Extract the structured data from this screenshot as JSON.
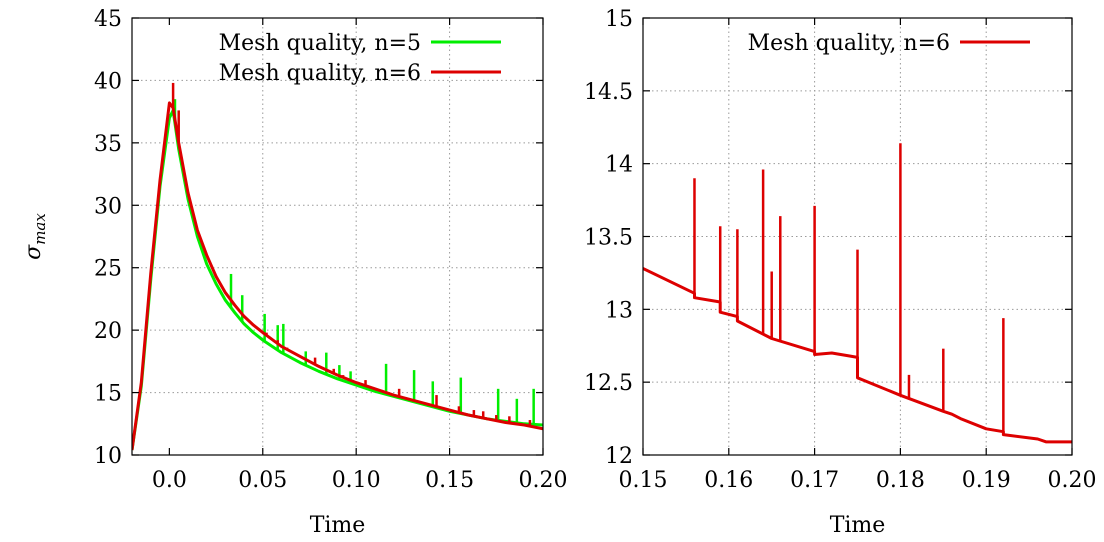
{
  "chart_data": [
    {
      "type": "line",
      "title": "",
      "xlabel": "Time",
      "ylabel": "σ",
      "ylabel_sub": "max",
      "xlim": [
        -0.02,
        0.2
      ],
      "ylim": [
        10,
        45
      ],
      "xticks": [
        0.0,
        0.05,
        0.1,
        0.15,
        0.2
      ],
      "xtick_labels": [
        "0.0",
        "0.05",
        "0.10",
        "0.15",
        "0.20"
      ],
      "yticks": [
        10,
        15,
        20,
        25,
        30,
        35,
        40,
        45
      ],
      "ytick_labels": [
        "10",
        "15",
        "20",
        "25",
        "30",
        "35",
        "40",
        "45"
      ],
      "grid": true,
      "legend_position": "top-right",
      "series": [
        {
          "name": "Mesh quality, n=5",
          "color": "#00ee00",
          "x": [
            -0.02,
            -0.015,
            -0.01,
            -0.005,
            0.0,
            0.002,
            0.005,
            0.01,
            0.015,
            0.02,
            0.025,
            0.03,
            0.035,
            0.04,
            0.045,
            0.05,
            0.06,
            0.07,
            0.08,
            0.09,
            0.1,
            0.11,
            0.12,
            0.13,
            0.14,
            0.15,
            0.16,
            0.17,
            0.18,
            0.19,
            0.2
          ],
          "y": [
            10.4,
            15.5,
            24.0,
            31.5,
            37.0,
            37.6,
            34.5,
            30.5,
            27.5,
            25.3,
            23.7,
            22.4,
            21.4,
            20.5,
            19.8,
            19.2,
            18.2,
            17.4,
            16.7,
            16.1,
            15.6,
            15.1,
            14.7,
            14.3,
            13.9,
            13.5,
            13.2,
            12.9,
            12.7,
            12.5,
            12.4
          ],
          "spikes": [
            [
              0.003,
              38.5
            ],
            [
              0.033,
              24.5
            ],
            [
              0.039,
              22.8
            ],
            [
              0.051,
              21.3
            ],
            [
              0.058,
              20.4
            ],
            [
              0.061,
              20.5
            ],
            [
              0.073,
              18.3
            ],
            [
              0.084,
              18.2
            ],
            [
              0.091,
              17.2
            ],
            [
              0.097,
              16.7
            ],
            [
              0.116,
              17.3
            ],
            [
              0.131,
              16.8
            ],
            [
              0.141,
              15.9
            ],
            [
              0.156,
              16.2
            ],
            [
              0.176,
              15.3
            ],
            [
              0.186,
              14.5
            ],
            [
              0.195,
              15.3
            ]
          ]
        },
        {
          "name": "Mesh quality, n=6",
          "color": "#dd0000",
          "x": [
            -0.02,
            -0.015,
            -0.01,
            -0.005,
            0.0,
            0.002,
            0.005,
            0.01,
            0.015,
            0.02,
            0.025,
            0.03,
            0.035,
            0.04,
            0.045,
            0.05,
            0.06,
            0.07,
            0.08,
            0.09,
            0.1,
            0.11,
            0.12,
            0.13,
            0.14,
            0.15,
            0.16,
            0.17,
            0.18,
            0.19,
            0.2
          ],
          "y": [
            10.4,
            15.8,
            24.5,
            32.0,
            38.2,
            37.8,
            35.0,
            31.0,
            28.0,
            26.0,
            24.3,
            23.0,
            22.0,
            21.1,
            20.4,
            19.8,
            18.7,
            17.9,
            17.1,
            16.4,
            15.8,
            15.3,
            14.8,
            14.4,
            14.0,
            13.6,
            13.2,
            12.9,
            12.6,
            12.4,
            12.1
          ],
          "spikes": [
            [
              0.002,
              39.8
            ],
            [
              0.005,
              37.6
            ],
            [
              0.052,
              19.8
            ],
            [
              0.058,
              19.2
            ],
            [
              0.063,
              18.6
            ],
            [
              0.078,
              17.8
            ],
            [
              0.088,
              16.9
            ],
            [
              0.093,
              16.4
            ],
            [
              0.105,
              16.0
            ],
            [
              0.123,
              15.3
            ],
            [
              0.143,
              14.8
            ],
            [
              0.155,
              13.9
            ],
            [
              0.163,
              13.6
            ],
            [
              0.168,
              13.5
            ],
            [
              0.175,
              13.2
            ],
            [
              0.182,
              13.1
            ],
            [
              0.193,
              12.8
            ]
          ]
        }
      ]
    },
    {
      "type": "line",
      "title": "",
      "xlabel": "Time",
      "ylabel": "",
      "xlim": [
        0.15,
        0.2
      ],
      "ylim": [
        12,
        15
      ],
      "xticks": [
        0.15,
        0.16,
        0.17,
        0.18,
        0.19,
        0.2
      ],
      "xtick_labels": [
        "0.15",
        "0.16",
        "0.17",
        "0.18",
        "0.19",
        "0.20"
      ],
      "yticks": [
        12,
        12.5,
        13,
        13.5,
        14,
        14.5,
        15
      ],
      "ytick_labels": [
        "12",
        "12.5",
        "13",
        "13.5",
        "14",
        "14.5",
        "15"
      ],
      "grid": true,
      "legend_position": "top-right",
      "series": [
        {
          "name": "Mesh quality, n=6",
          "color": "#dd0000",
          "x": [
            0.15,
            0.156,
            0.156,
            0.159,
            0.159,
            0.161,
            0.161,
            0.165,
            0.17,
            0.17,
            0.172,
            0.174,
            0.175,
            0.175,
            0.18,
            0.185,
            0.186,
            0.187,
            0.19,
            0.192,
            0.192,
            0.196,
            0.197,
            0.2
          ],
          "y": [
            13.28,
            13.11,
            13.08,
            13.05,
            12.98,
            12.95,
            12.92,
            12.8,
            12.71,
            12.69,
            12.7,
            12.68,
            12.67,
            12.53,
            12.41,
            12.3,
            12.28,
            12.25,
            12.18,
            12.16,
            12.14,
            12.11,
            12.09,
            12.09
          ],
          "spikes": [
            [
              0.156,
              13.9
            ],
            [
              0.159,
              13.57
            ],
            [
              0.161,
              13.55
            ],
            [
              0.164,
              13.96
            ],
            [
              0.165,
              13.26
            ],
            [
              0.166,
              13.64
            ],
            [
              0.17,
              13.71
            ],
            [
              0.175,
              13.41
            ],
            [
              0.18,
              14.14
            ],
            [
              0.181,
              12.55
            ],
            [
              0.185,
              12.73
            ],
            [
              0.192,
              12.94
            ]
          ]
        }
      ]
    }
  ]
}
